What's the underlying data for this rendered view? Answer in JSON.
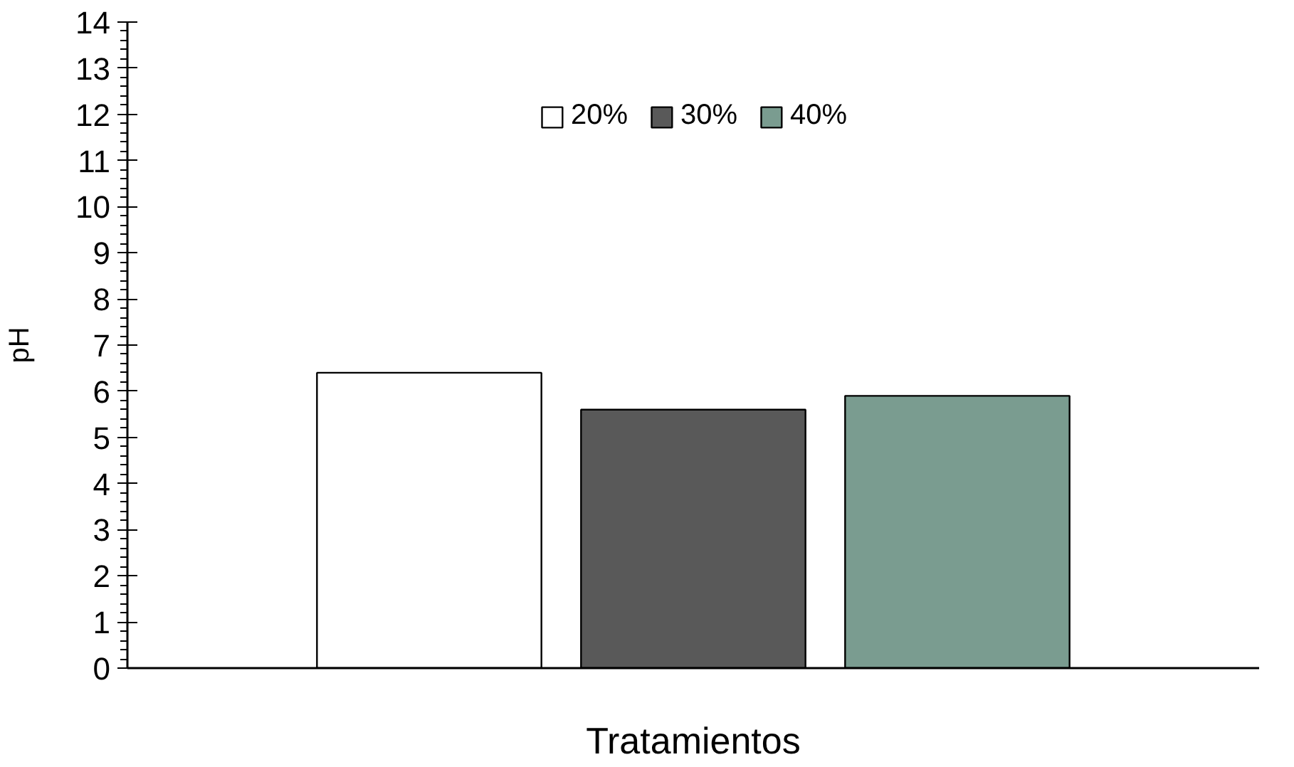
{
  "chart_data": {
    "type": "bar",
    "xlabel": "Tratamientos",
    "ylabel": "pH",
    "categories": [
      null
    ],
    "series": [
      {
        "name": "20%",
        "color": "#ffffff",
        "values": [
          6.4
        ]
      },
      {
        "name": "30%",
        "color": "#595959",
        "values": [
          5.6
        ]
      },
      {
        "name": "40%",
        "color": "#7a9c90",
        "values": [
          5.9
        ]
      }
    ],
    "ylim": [
      0,
      14
    ],
    "yticks": [
      0,
      1,
      2,
      3,
      4,
      5,
      6,
      7,
      8,
      9,
      10,
      11,
      12,
      13,
      14
    ],
    "grid": false,
    "legend": "top"
  }
}
